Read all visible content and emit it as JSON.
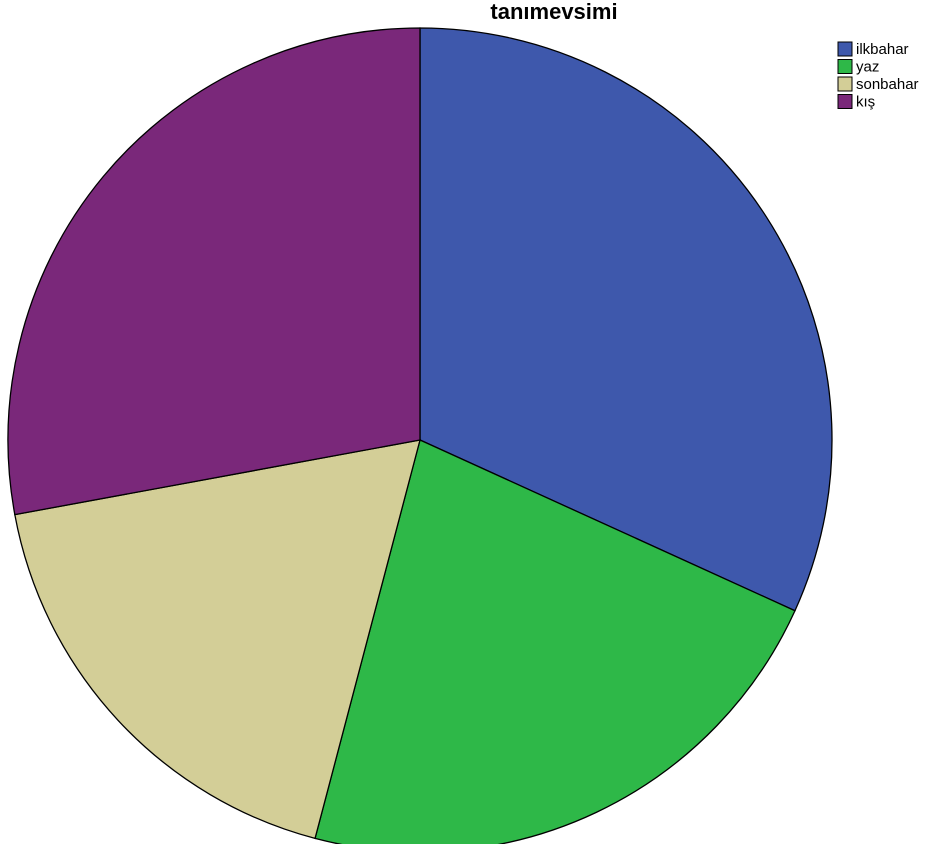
{
  "chart_data": {
    "type": "pie",
    "title": "tanımevsimi",
    "categories": [
      "ilkbahar",
      "yaz",
      "sonbahar",
      "kış"
    ],
    "values": [
      31.8,
      22.3,
      18.0,
      27.9
    ],
    "colors": [
      "#3e58ac",
      "#2eb848",
      "#d3ce97",
      "#7a287a"
    ],
    "legend": "top-right"
  }
}
